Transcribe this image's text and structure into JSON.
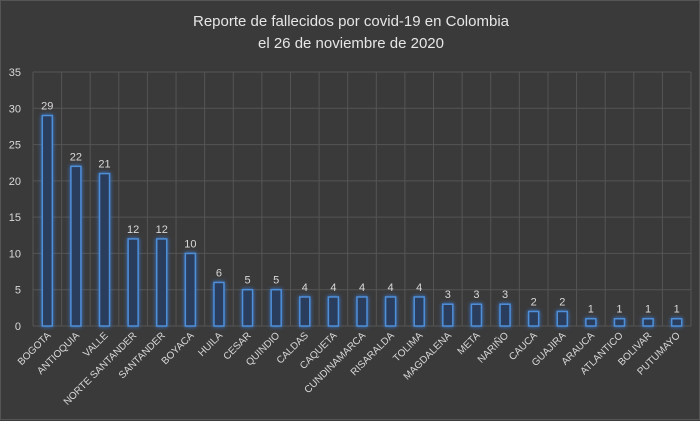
{
  "chart_data": {
    "type": "bar",
    "title": [
      "Reporte de fallecidos por covid-19 en Colombia",
      "el 26 de noviembre de 2020"
    ],
    "categories": [
      "BOGOTA",
      "ANTIOQUIA",
      "VALLE",
      "NORTE SANTANDER",
      "SANTANDER",
      "BOYACA",
      "HUILA",
      "CESAR",
      "QUINDIO",
      "CALDAS",
      "CAQUETA",
      "CUNDINAMARCA",
      "RISARALDA",
      "TOLIMA",
      "MAGDALENA",
      "META",
      "NARIÑO",
      "CAUCA",
      "GUAJIRA",
      "ARAUCA",
      "ATLANTICO",
      "BOLIVAR",
      "PUTUMAYO"
    ],
    "values": [
      29,
      22,
      21,
      12,
      12,
      10,
      6,
      5,
      5,
      4,
      4,
      4,
      4,
      4,
      3,
      3,
      3,
      2,
      2,
      1,
      1,
      1,
      1
    ],
    "xlabel": "",
    "ylabel": "",
    "ylim": [
      0,
      35
    ],
    "yticks": [
      0,
      5,
      10,
      15,
      20,
      25,
      30,
      35
    ],
    "grid": true,
    "data_labels": true,
    "colors": {
      "background": "#3a3a3a",
      "bar_fill": "#2a3d5c",
      "bar_outline": "#4f8fd8",
      "text": "#d9d9d9",
      "grid": "#555555"
    }
  }
}
